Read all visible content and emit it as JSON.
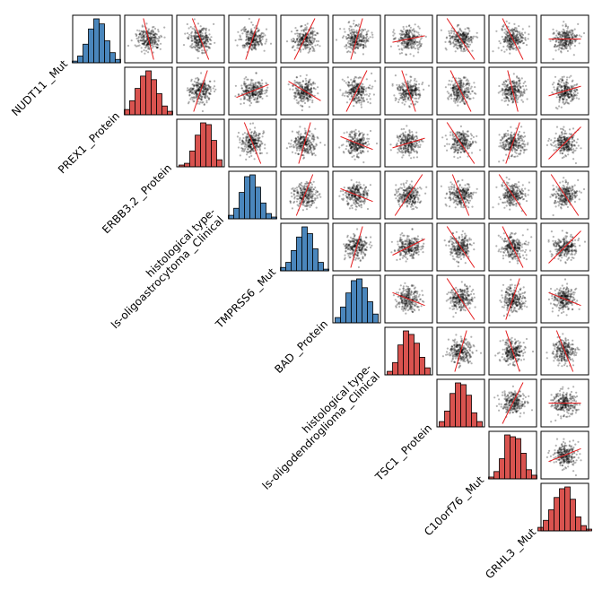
{
  "chart_data": {
    "type": "scatter",
    "title": "",
    "variables": [
      "NUDT11 _Mut",
      "PREX1 _Protein",
      "ERBB3.2 _Protein",
      "histological type-\nls-oligoastrocytoma _Clinical",
      "TMPRSS6 _Mut",
      "BAD _Protein",
      "histological type-\nls-oligodendroglioma _Clinical",
      "TSC1 _Protein",
      "C10orf76 _Mut",
      "GRHL3 _Mut"
    ],
    "diagonal_colors": [
      "#4a86bc",
      "#d9534f",
      "#d9534f",
      "#4a86bc",
      "#4a86bc",
      "#4a86bc",
      "#d9534f",
      "#d9534f",
      "#d9534f",
      "#d9534f"
    ],
    "histograms": [
      [
        2,
        8,
        22,
        40,
        52,
        46,
        26,
        12,
        4
      ],
      [
        6,
        16,
        30,
        44,
        50,
        40,
        24,
        10,
        4
      ],
      [
        2,
        4,
        18,
        36,
        50,
        48,
        30,
        8
      ],
      [
        4,
        12,
        30,
        48,
        50,
        36,
        18,
        6,
        2
      ],
      [
        4,
        10,
        24,
        40,
        52,
        44,
        26,
        10,
        2
      ],
      [
        6,
        18,
        34,
        48,
        50,
        40,
        24,
        10
      ],
      [
        4,
        14,
        34,
        50,
        46,
        36,
        20,
        8
      ],
      [
        6,
        18,
        38,
        50,
        48,
        36,
        16,
        6
      ],
      [
        2,
        8,
        22,
        48,
        46,
        44,
        28,
        10,
        4
      ],
      [
        4,
        12,
        24,
        38,
        48,
        50,
        36,
        16,
        6,
        2
      ]
    ],
    "regression_slopes": [
      [
        null,
        -4.0,
        -2.5,
        3.0,
        2.0,
        3.5,
        0.2,
        -1.5,
        -2.0,
        0.0
      ],
      [
        null,
        null,
        3.0,
        0.4,
        -0.6,
        2.0,
        -3.0,
        -2.0,
        -4.0,
        0.3
      ],
      [
        null,
        null,
        null,
        -2.5,
        3.5,
        -0.4,
        0.3,
        -1.5,
        3.0,
        1.0
      ],
      [
        null,
        null,
        null,
        null,
        2.5,
        -0.4,
        1.5,
        -2.5,
        -1.5,
        -1.5
      ],
      [
        null,
        null,
        null,
        null,
        null,
        3.5,
        0.5,
        -1.5,
        -2.0,
        1.0
      ],
      [
        null,
        null,
        null,
        null,
        null,
        null,
        -0.4,
        -1.5,
        3.0,
        -0.4
      ],
      [
        null,
        null,
        null,
        null,
        null,
        null,
        null,
        3.5,
        -3.0,
        -2.5
      ],
      [
        null,
        null,
        null,
        null,
        null,
        null,
        null,
        null,
        2.0,
        0.0
      ],
      [
        null,
        null,
        null,
        null,
        null,
        null,
        null,
        null,
        null,
        0.4
      ],
      [
        null,
        null,
        null,
        null,
        null,
        null,
        null,
        null,
        null,
        null
      ]
    ],
    "points_per_panel": 250,
    "point_color": "#000000",
    "regression_color": "#e41a1c",
    "grid": false,
    "legend": "none"
  }
}
